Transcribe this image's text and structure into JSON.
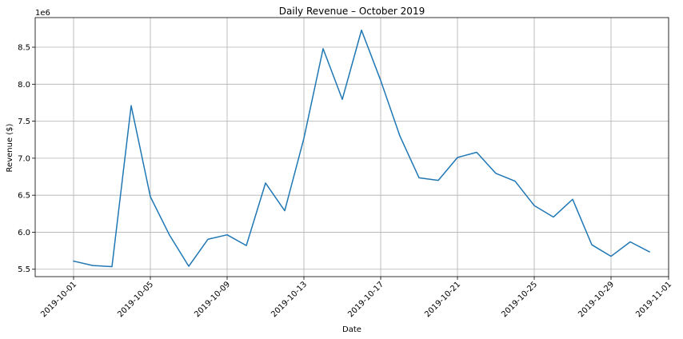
{
  "chart_data": {
    "type": "line",
    "title": "Daily Revenue – October 2019",
    "xlabel": "Date",
    "ylabel": "Revenue ($)",
    "y_offset_label": "1e6",
    "grid": true,
    "legend": "none",
    "color": "#1f77b4",
    "xlim": [
      "2019-09-29",
      "2019-11-01"
    ],
    "ylim": [
      5400000,
      8900000
    ],
    "x_ticks": [
      "2019-10-01",
      "2019-10-05",
      "2019-10-09",
      "2019-10-13",
      "2019-10-17",
      "2019-10-21",
      "2019-10-25",
      "2019-10-29",
      "2019-11-01"
    ],
    "y_ticks": [
      5500000,
      6000000,
      6500000,
      7000000,
      7500000,
      8000000,
      8500000
    ],
    "y_tick_labels": [
      "5.5",
      "6.0",
      "6.5",
      "7.0",
      "7.5",
      "8.0",
      "8.5"
    ],
    "x": [
      "2019-10-01",
      "2019-10-02",
      "2019-10-03",
      "2019-10-04",
      "2019-10-05",
      "2019-10-06",
      "2019-10-07",
      "2019-10-08",
      "2019-10-09",
      "2019-10-10",
      "2019-10-11",
      "2019-10-12",
      "2019-10-13",
      "2019-10-14",
      "2019-10-15",
      "2019-10-16",
      "2019-10-17",
      "2019-10-18",
      "2019-10-19",
      "2019-10-20",
      "2019-10-21",
      "2019-10-22",
      "2019-10-23",
      "2019-10-24",
      "2019-10-25",
      "2019-10-26",
      "2019-10-27",
      "2019-10-28",
      "2019-10-29",
      "2019-10-30",
      "2019-10-31"
    ],
    "series": [
      {
        "values": [
          5610000,
          5550000,
          5535000,
          7710000,
          6480000,
          5960000,
          5540000,
          5905000,
          5965000,
          5820000,
          6665000,
          6290000,
          7270000,
          8480000,
          7795000,
          8730000,
          8050000,
          7300000,
          6735000,
          6700000,
          7010000,
          7080000,
          6795000,
          6690000,
          6360000,
          6205000,
          6445000,
          5830000,
          5675000,
          5870000,
          5735000
        ]
      }
    ]
  }
}
